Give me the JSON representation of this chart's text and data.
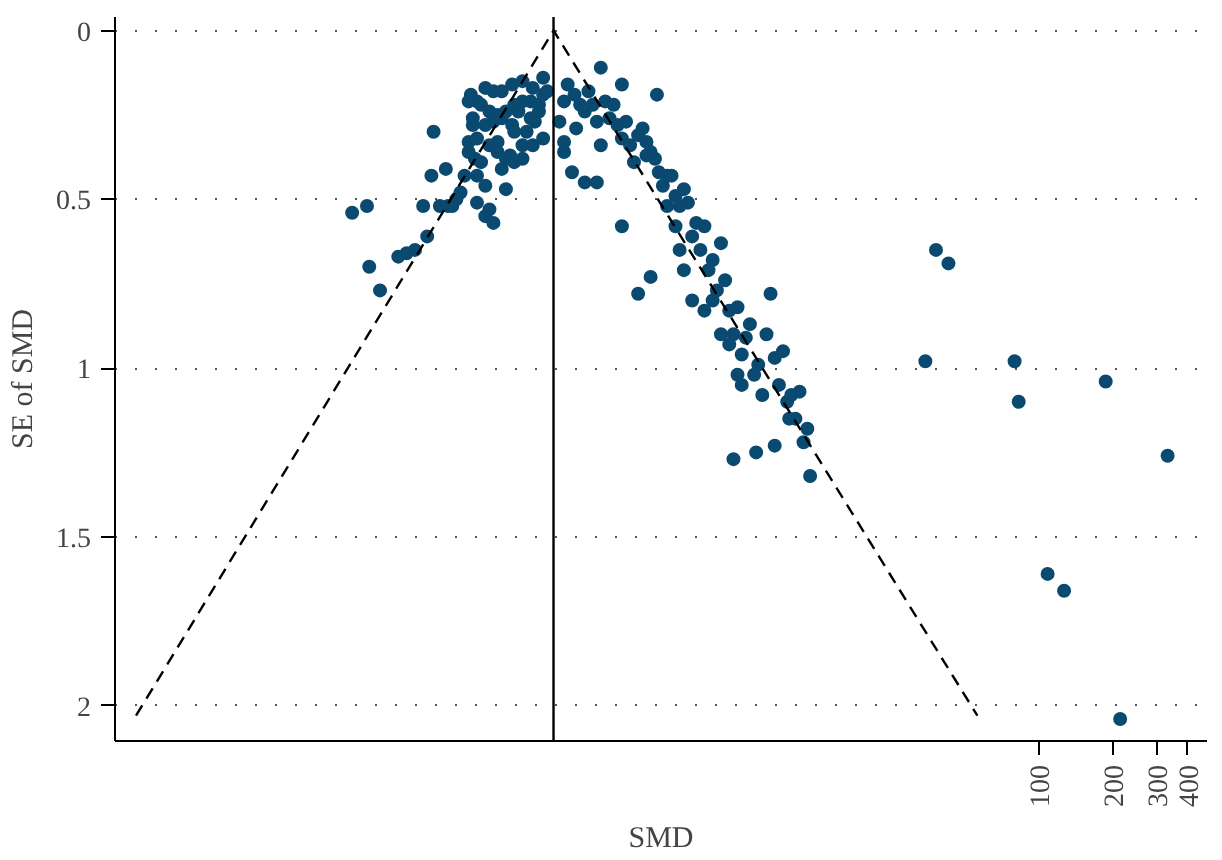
{
  "chart_data": {
    "type": "scatter",
    "xlabel": "SMD",
    "ylabel": "SE of SMD",
    "log": "x",
    "marker": "circle",
    "grid": "y",
    "tick_labels": "xy",
    "xlim": [
      0.0175,
      480
    ],
    "ylim": [
      2.105,
      -0.04
    ],
    "xticks": [
      100,
      200,
      300,
      400
    ],
    "yticks": [
      0,
      0.5,
      1,
      1.5,
      2
    ],
    "ref_lines": [
      {
        "axis": "x",
        "value": 1.06,
        "color": "#000000",
        "line_style": "solid"
      }
    ],
    "series": [
      {
        "color": "#0b4a70",
        "x": [
          0.161,
          0.185,
          0.189,
          0.209,
          0.248,
          0.268,
          0.29,
          0.313,
          0.325,
          0.338,
          0.345,
          0.366,
          0.387,
          0.395,
          0.411,
          0.427,
          0.444,
          0.461,
          0.479,
          0.489,
          0.498,
          0.508,
          0.518,
          0.538,
          0.56,
          0.582,
          0.604,
          0.628,
          0.653,
          0.679,
          0.706,
          0.734,
          0.763,
          0.793,
          0.824,
          0.856,
          0.89,
          0.925,
          0.962,
          1.0,
          0.518,
          0.56,
          0.604,
          0.653,
          0.72,
          0.793,
          0.873,
          0.962,
          0.479,
          0.498,
          0.538,
          0.582,
          0.628,
          0.679,
          0.734,
          0.793,
          0.856,
          0.925,
          0.653,
          0.72,
          0.56,
          0.518,
          0.582,
          0.628,
          0.679,
          0.734,
          0.793,
          0.873,
          0.962,
          0.479,
          0.518,
          0.56,
          0.604,
          1.12,
          1.17,
          1.21,
          1.29,
          1.36,
          1.42,
          1.47,
          1.53,
          1.59,
          1.65,
          1.72,
          1.79,
          1.86,
          1.93,
          2.01,
          2.09,
          2.17,
          2.25,
          2.34,
          2.44,
          2.53,
          2.63,
          2.74,
          2.84,
          2.95,
          3.07,
          3.2,
          3.32,
          3.45,
          3.59,
          3.73,
          3.88,
          4.03,
          4.19,
          4.35,
          4.52,
          4.7,
          4.89,
          5.08,
          5.28,
          5.49,
          5.71,
          5.93,
          6.17,
          6.41,
          6.66,
          6.93,
          7.2,
          7.48,
          7.78,
          8.08,
          8.4,
          8.74,
          9.08,
          9.44,
          9.81,
          10.2,
          10.6,
          11.4,
          5.71,
          7.06,
          8.4,
          2.53,
          2.63,
          2.34,
          2.01,
          1.59,
          1.42,
          1.26,
          1.17,
          1.31,
          1.17,
          1.65,
          2.01,
          2.79,
          3.07,
          3.32,
          3.45,
          3.59,
          3.88,
          4.35,
          4.7,
          5.08,
          5.49,
          5.93,
          6.17,
          9.62,
          11.0,
          11.7,
          34.4,
          38.0,
          42.7,
          79.3,
          82.4,
          186,
          108,
          126,
          213,
          332
        ],
        "values": [
          0.54,
          0.52,
          0.7,
          0.77,
          0.67,
          0.66,
          0.65,
          0.52,
          0.61,
          0.43,
          0.3,
          0.52,
          0.41,
          0.52,
          0.52,
          0.5,
          0.48,
          0.43,
          0.33,
          0.19,
          0.28,
          0.38,
          0.51,
          0.39,
          0.46,
          0.53,
          0.27,
          0.33,
          0.41,
          0.47,
          0.37,
          0.3,
          0.24,
          0.34,
          0.3,
          0.26,
          0.27,
          0.24,
          0.19,
          0.18,
          0.21,
          0.17,
          0.18,
          0.18,
          0.16,
          0.15,
          0.17,
          0.14,
          0.21,
          0.26,
          0.22,
          0.24,
          0.25,
          0.24,
          0.22,
          0.21,
          0.21,
          0.22,
          0.26,
          0.28,
          0.28,
          0.32,
          0.34,
          0.36,
          0.38,
          0.39,
          0.38,
          0.34,
          0.32,
          0.36,
          0.43,
          0.55,
          0.57,
          0.27,
          0.21,
          0.16,
          0.19,
          0.22,
          0.24,
          0.18,
          0.22,
          0.27,
          0.34,
          0.21,
          0.26,
          0.22,
          0.28,
          0.32,
          0.27,
          0.34,
          0.39,
          0.31,
          0.29,
          0.33,
          0.36,
          0.38,
          0.42,
          0.46,
          0.43,
          0.43,
          0.49,
          0.52,
          0.47,
          0.51,
          0.61,
          0.57,
          0.65,
          0.58,
          0.71,
          0.68,
          0.77,
          0.63,
          0.74,
          0.83,
          0.9,
          0.82,
          0.96,
          0.91,
          0.87,
          1.02,
          0.99,
          1.08,
          0.9,
          0.78,
          0.97,
          1.05,
          0.95,
          1.1,
          1.08,
          1.15,
          1.07,
          1.18,
          1.27,
          1.25,
          1.23,
          0.37,
          0.73,
          0.78,
          0.58,
          0.45,
          0.45,
          0.42,
          0.33,
          0.29,
          0.36,
          0.11,
          0.16,
          0.19,
          0.52,
          0.58,
          0.65,
          0.71,
          0.8,
          0.83,
          0.8,
          0.9,
          0.93,
          1.02,
          1.05,
          1.15,
          1.22,
          1.32,
          0.98,
          0.65,
          0.69,
          0.98,
          1.1,
          1.04,
          1.61,
          1.66,
          2.04,
          1.26
        ]
      },
      {
        "type": "line",
        "marker": "none",
        "line_style": "dashed",
        "color": "#000000",
        "x": [
          0.0213,
          1.06,
          56
        ],
        "values": [
          2.03,
          0,
          2.03
        ]
      }
    ]
  }
}
